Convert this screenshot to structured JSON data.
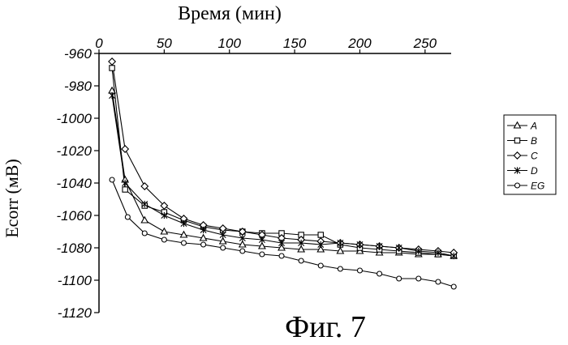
{
  "figure_label": "Фиг. 7",
  "chart_data": {
    "type": "line",
    "xlabel": "Время (мин)",
    "ylabel": "Ecorr (мВ)",
    "xlim": [
      0,
      270
    ],
    "ylim": [
      -1120,
      -960
    ],
    "x_axis_position": "top",
    "y_axis_inverted": true,
    "xticks": [
      0,
      50,
      100,
      150,
      200,
      250
    ],
    "yticks": [
      -960,
      -980,
      -1000,
      -1020,
      -1040,
      -1060,
      -1080,
      -1100,
      -1120
    ],
    "legend_position": "right",
    "series": [
      {
        "name": "A",
        "marker": "triangle",
        "x": [
          10,
          20,
          35,
          50,
          65,
          80,
          95,
          110,
          125,
          140,
          155,
          170,
          185,
          200,
          215,
          230,
          245,
          260,
          272
        ],
        "y": [
          -983,
          -1038,
          -1063,
          -1070,
          -1072,
          -1074,
          -1076,
          -1078,
          -1079,
          -1080,
          -1081,
          -1081,
          -1082,
          -1082,
          -1083,
          -1083,
          -1084,
          -1084,
          -1085
        ]
      },
      {
        "name": "B",
        "marker": "square",
        "x": [
          10,
          20,
          35,
          50,
          65,
          80,
          95,
          110,
          125,
          140,
          155,
          170,
          185,
          200,
          215,
          230,
          245,
          260,
          272
        ],
        "y": [
          -969,
          -1044,
          -1054,
          -1058,
          -1063,
          -1067,
          -1069,
          -1070,
          -1071,
          -1071,
          -1072,
          -1072,
          -1078,
          -1080,
          -1081,
          -1082,
          -1083,
          -1084,
          -1085
        ]
      },
      {
        "name": "C",
        "marker": "diamond",
        "x": [
          10,
          20,
          35,
          50,
          65,
          80,
          95,
          110,
          125,
          140,
          155,
          170,
          185,
          200,
          215,
          230,
          245,
          260,
          272
        ],
        "y": [
          -965,
          -1019,
          -1042,
          -1054,
          -1062,
          -1066,
          -1068,
          -1070,
          -1072,
          -1074,
          -1075,
          -1076,
          -1077,
          -1078,
          -1079,
          -1080,
          -1081,
          -1082,
          -1083
        ]
      },
      {
        "name": "D",
        "marker": "star",
        "x": [
          10,
          20,
          35,
          50,
          65,
          80,
          95,
          110,
          125,
          140,
          155,
          170,
          185,
          200,
          215,
          230,
          245,
          260,
          272
        ],
        "y": [
          -986,
          -1040,
          -1053,
          -1060,
          -1065,
          -1069,
          -1072,
          -1074,
          -1075,
          -1077,
          -1077,
          -1078,
          -1077,
          -1078,
          -1079,
          -1080,
          -1082,
          -1083,
          -1085
        ]
      },
      {
        "name": "EG",
        "marker": "circle",
        "x": [
          10,
          22,
          35,
          50,
          65,
          80,
          95,
          110,
          125,
          140,
          155,
          170,
          185,
          200,
          215,
          230,
          245,
          260,
          272
        ],
        "y": [
          -1038,
          -1061,
          -1071,
          -1075,
          -1077,
          -1078,
          -1080,
          -1082,
          -1084,
          -1085,
          -1088,
          -1091,
          -1093,
          -1094,
          -1096,
          -1099,
          -1099,
          -1101,
          -1104
        ]
      }
    ]
  }
}
